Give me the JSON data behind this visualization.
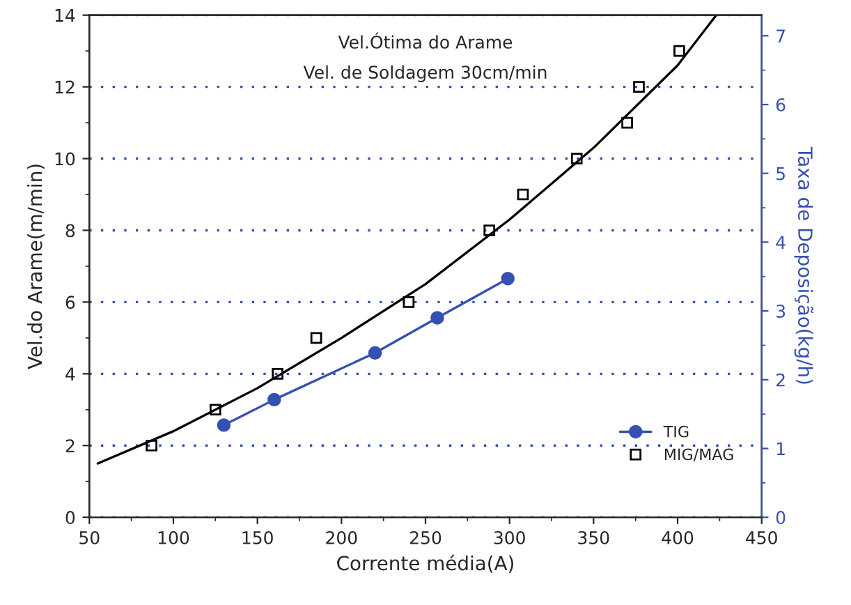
{
  "chart_data": {
    "type": "scatter",
    "title": "Vel.Ótima do Arame",
    "subtitle": "Vel. de Soldagem 30cm/min",
    "xlabel": "Corrente média(A)",
    "ylabel": "Vel.do Arame(m/min)",
    "y2label": "Taxa de Deposição(kg/h)",
    "xlim": [
      50,
      450
    ],
    "xticks": [
      50,
      100,
      150,
      200,
      250,
      300,
      350,
      400,
      450
    ],
    "ylim": [
      0,
      14
    ],
    "yticks": [
      0,
      2,
      4,
      6,
      8,
      10,
      12,
      14
    ],
    "y2lim": [
      0,
      7.3
    ],
    "y2ticks": [
      0,
      1,
      2,
      3,
      4,
      5,
      6,
      7
    ],
    "grid": "y",
    "legend": "bottom right",
    "series": [
      {
        "name": "TIG",
        "type": "line",
        "axis": "y2",
        "color": "#3550b0",
        "marker": "circle",
        "line_style": "solid",
        "x": [
          130,
          160,
          220,
          257,
          299
        ],
        "values": [
          1.34,
          1.71,
          2.39,
          2.9,
          3.47
        ]
      },
      {
        "name": "MIG/MAG",
        "color": "#000000",
        "marker": "square",
        "x": [
          87,
          125,
          162,
          185,
          240,
          288,
          308,
          340,
          370,
          377,
          401
        ],
        "values": [
          2,
          3,
          4,
          5,
          6,
          8,
          9,
          10,
          11,
          12,
          13
        ]
      },
      {
        "type": "line",
        "color": "#000000",
        "marker": "none",
        "line_style": "solid",
        "x": [
          55,
          100,
          150,
          200,
          250,
          300,
          350,
          400,
          423
        ],
        "values": [
          1.5,
          2.4,
          3.6,
          5.0,
          6.5,
          8.3,
          10.3,
          12.6,
          14
        ]
      }
    ]
  }
}
